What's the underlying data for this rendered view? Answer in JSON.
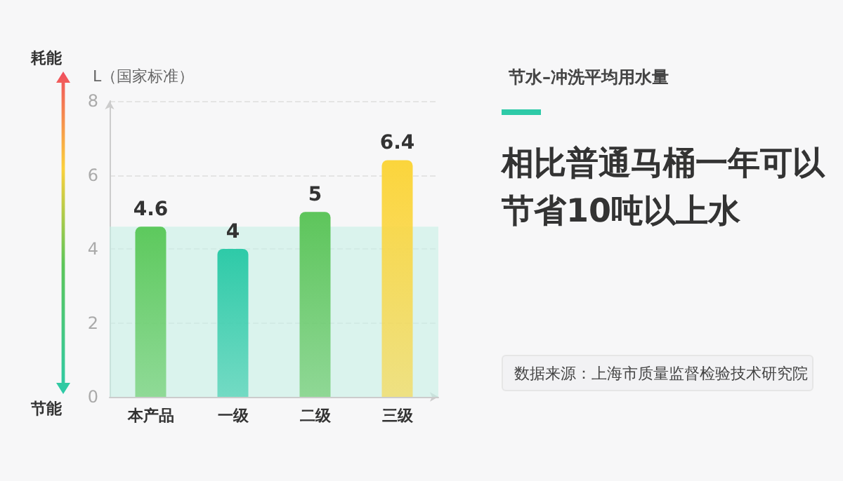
{
  "chart_data": {
    "type": "bar",
    "title": "节水–冲洗平均用水量",
    "subtitle": "相比普通马桶一年可以节省10吨以上水",
    "ylabel": "L（国家标准）",
    "categories": [
      "本产品",
      "一级",
      "二级",
      "三级"
    ],
    "values": [
      4.6,
      4,
      5,
      6.4
    ],
    "colors": [
      "#5dc95d",
      "#2ecaa8",
      "#5dc55b",
      "#fbd53c"
    ],
    "data_labels": true,
    "ylim": [
      0,
      8
    ],
    "yticks": [
      0,
      2,
      4,
      6,
      8
    ],
    "grid": "y",
    "bands": [
      {
        "axis": "y",
        "from": 0,
        "to": 4.6,
        "color": "#c6f0e6"
      }
    ],
    "annotations": [
      "耗能",
      "节能",
      "数据来源：上海市质量监督检验技术研究院"
    ]
  }
}
